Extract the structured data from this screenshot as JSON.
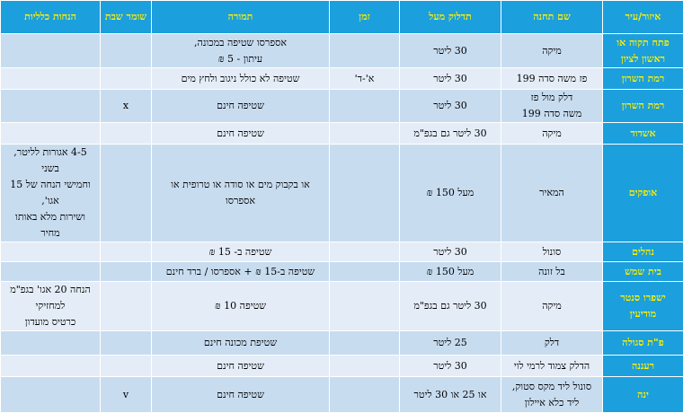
{
  "headers": [
    "איזור/עיר",
    "שם תחנה",
    "תדלוק מעל",
    "זמן",
    "תמורה",
    "שומר שבת",
    "הנחות כלליות"
  ],
  "rows": [
    {
      "city": "פתח תקוה או ראשון לציון",
      "station": "מיקה",
      "fuel": "30 ליטר",
      "time": "",
      "reward": "אספרסו שטיפה במכונה,\nעיתון - 5 ₪",
      "shabbat": "",
      "discount": ""
    },
    {
      "city": "רמת השרון",
      "station": "פז משה סדה 199",
      "fuel": "30 ליטר",
      "time": "א'-ד'",
      "reward": "שטיפה לא כולל ניגוב ולחץ מים",
      "shabbat": "",
      "discount": ""
    },
    {
      "city": "רמת השרון",
      "station": "דלק מול פז\nמשה סדה 199",
      "fuel": "30 ליטר",
      "time": "",
      "reward": "שטיפה חינם",
      "shabbat": "x",
      "discount": ""
    },
    {
      "city": "אשדוד",
      "station": "מיקה",
      "fuel": "30 ליטר גם בגפ\"מ",
      "time": "",
      "reward": "שטיפה חינם",
      "shabbat": "",
      "discount": ""
    },
    {
      "city": "אופקים",
      "station": "המאיר",
      "fuel": "מעל 150 ₪",
      "time": "",
      "reward": "או בקבוק מים או סודה או טרופית או\nאספרסו",
      "shabbat": "",
      "discount": "4-5 אגורות לליטר, בשני\nוחמישי הנחה של 15 אגו',\nושירות מלא באותו מחיר"
    },
    {
      "city": "נהלים",
      "station": "סונול",
      "fuel": "30 ליטר",
      "time": "",
      "reward": "שטיפה ב- 15 ₪",
      "shabbat": "",
      "discount": ""
    },
    {
      "city": "בית שמש",
      "station": "בל זונה",
      "fuel": "מעל 150 ₪",
      "time": "",
      "reward": "שטיפה ב-15 ₪ + אספרסו / ברד חינם",
      "shabbat": "",
      "discount": ""
    },
    {
      "city": "ישפרו סנטר מודיעין",
      "station": "מיקה",
      "fuel": "30 ליטר גם בגפ\"מ",
      "time": "",
      "reward": "שטיפה 10 ₪",
      "shabbat": "",
      "discount": "הנחה 20 אגו' בגפ\"מ למחזיקי\nכרטיס מועדון"
    },
    {
      "city": "פ\"ת סגולה",
      "station": "דלק",
      "fuel": "25 ליטר",
      "time": "",
      "reward": "שטיפת מכונה חינם",
      "shabbat": "",
      "discount": ""
    },
    {
      "city": "רעננה",
      "station": "הדלק צמוד לרמי לוי",
      "fuel": "30 ליטר",
      "time": "",
      "reward": "שטיפה חינם",
      "shabbat": "",
      "discount": ""
    },
    {
      "city": "ינה",
      "station": "סונול ליד מקס סטוק,\nליד כלא איילון",
      "fuel": "או 25 או 30 ליטר",
      "time": "",
      "reward": "שטיפה חינם",
      "shabbat": "v",
      "discount": ""
    }
  ]
}
